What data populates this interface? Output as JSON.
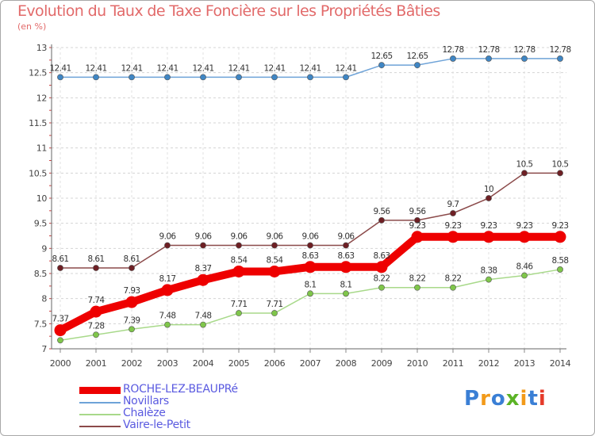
{
  "title": "Evolution du Taux de Taxe Foncière sur les Propriétés Bâties",
  "subtitle": "(en %)",
  "logo": {
    "letters": [
      "P",
      "r",
      "o",
      "x",
      "i",
      "t",
      "i"
    ],
    "colors": [
      "#3a7fd5",
      "#f29a1a",
      "#3a7fd5",
      "#5bb326",
      "#f29a1a",
      "#3a7fd5",
      "#e53a2a"
    ]
  },
  "chart_data": {
    "type": "line",
    "title": "Evolution du Taux de Taxe Foncière sur les Propriétés Bâties",
    "ylabel": "(en %)",
    "xlabel": "",
    "ylim": [
      7,
      13
    ],
    "y_ticks": [
      "7",
      "7.5",
      "8",
      "8.5",
      "9",
      "9.5",
      "10",
      "10.5",
      "11",
      "11.5",
      "12",
      "12.5",
      "13"
    ],
    "x": [
      "2000",
      "2001",
      "2002",
      "2003",
      "2004",
      "2005",
      "2006",
      "2007",
      "2008",
      "2009",
      "2010",
      "2011",
      "2012",
      "2013",
      "2014"
    ],
    "series": [
      {
        "name": "Novillars",
        "color": "#6ea3d8",
        "marker": "#3f86c4",
        "values": [
          12.41,
          12.41,
          12.41,
          12.41,
          12.41,
          12.41,
          12.41,
          12.41,
          12.41,
          12.65,
          12.65,
          12.78,
          12.78,
          12.78,
          12.78
        ],
        "labels": [
          "12.41",
          "12.41",
          "12.41",
          "12.41",
          "12.41",
          "12.41",
          "12.41",
          "12.41",
          "12.41",
          "12.65",
          "12.65",
          "12.78",
          "12.78",
          "12.78",
          "12.78"
        ]
      },
      {
        "name": "Chalèze",
        "color": "#a8d98a",
        "marker": "#7fc64a",
        "values": [
          7.17,
          7.28,
          7.39,
          7.48,
          7.48,
          7.71,
          7.71,
          8.1,
          8.1,
          8.22,
          8.22,
          8.22,
          8.38,
          8.46,
          8.58
        ],
        "labels": [
          "",
          "7.28",
          "7.39",
          "7.48",
          "7.48",
          "7.71",
          "7.71",
          "8.1",
          "8.1",
          "8.22",
          "8.22",
          "8.22",
          "8.38",
          "8.46",
          "8.58"
        ]
      },
      {
        "name": "Vaire-le-Petit",
        "color": "#8b4a4a",
        "marker": "#6e1f24",
        "values": [
          8.61,
          8.61,
          8.61,
          9.06,
          9.06,
          9.06,
          9.06,
          9.06,
          9.06,
          9.56,
          9.56,
          9.7,
          10,
          10.5,
          10.5
        ],
        "labels": [
          "8.61",
          "8.61",
          "8.61",
          "9.06",
          "9.06",
          "9.06",
          "9.06",
          "9.06",
          "9.06",
          "9.56",
          "9.56",
          "9.7",
          "10",
          "10.5",
          "10.5"
        ]
      },
      {
        "name": "ROCHE-LEZ-BEAUPRé",
        "color": "#ee0000",
        "marker": "#ee0000",
        "values": [
          7.37,
          7.74,
          7.93,
          8.17,
          8.37,
          8.54,
          8.54,
          8.63,
          8.63,
          8.63,
          9.23,
          9.23,
          9.23,
          9.23,
          9.23
        ],
        "labels": [
          "7.37",
          "7.74",
          "7.93",
          "8.17",
          "8.37",
          "8.54",
          "8.54",
          "8.63",
          "8.63",
          "8.63",
          "9.23",
          "9.23",
          "9.23",
          "9.23",
          "9.23"
        ]
      }
    ]
  },
  "legend": [
    {
      "label": "ROCHE-LEZ-BEAUPRé",
      "color": "#ee0000",
      "thickness": "thick"
    },
    {
      "label": "Novillars",
      "color": "#6ea3d8",
      "thickness": "thin"
    },
    {
      "label": "Chalèze",
      "color": "#a8d98a",
      "thickness": "thin"
    },
    {
      "label": "Vaire-le-Petit",
      "color": "#8b4a4a",
      "thickness": "thin"
    }
  ]
}
